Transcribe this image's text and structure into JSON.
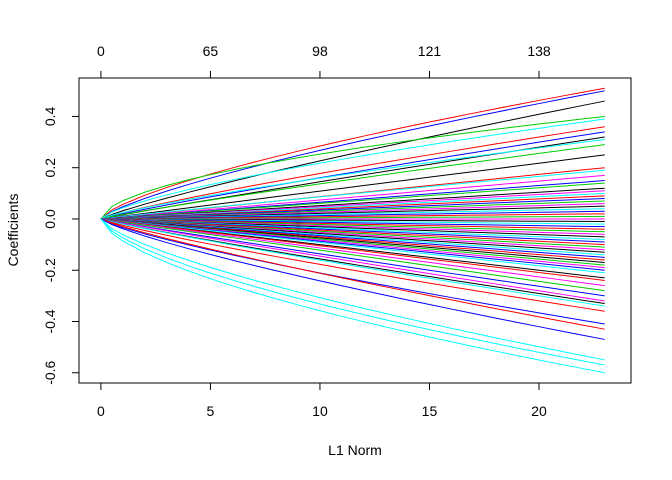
{
  "chart_data": {
    "type": "line",
    "title": "",
    "xlabel": "L1 Norm",
    "ylabel": "Coefficients",
    "xlim": [
      -1,
      24.2
    ],
    "ylim": [
      -0.64,
      0.55
    ],
    "x_ticks": [
      0,
      5,
      10,
      15,
      20
    ],
    "x_tick_labels": [
      "0",
      "5",
      "10",
      "15",
      "20"
    ],
    "y_ticks": [
      -0.6,
      -0.4,
      -0.2,
      0.0,
      0.2,
      0.4
    ],
    "y_tick_labels": [
      "-0.6",
      "-0.4",
      "-0.2",
      "0.0",
      "0.2",
      "0.4"
    ],
    "top_axis": {
      "positions": [
        0,
        5,
        10,
        15,
        20
      ],
      "labels": [
        "0",
        "65",
        "98",
        "121",
        "138"
      ]
    },
    "grid": false,
    "legend": "none",
    "x": [
      0,
      0.5,
      1,
      2,
      3,
      4,
      5,
      6,
      7,
      8,
      9,
      10,
      11,
      12,
      13,
      14,
      15,
      16,
      17,
      18,
      19,
      20,
      21,
      22,
      23
    ],
    "palette": [
      "#000000",
      "#FF0000",
      "#00CD00",
      "#0000FF",
      "#00FFFF",
      "#FF00FF",
      "#FFFF00",
      "#BEBEBE"
    ],
    "series": [
      {
        "color": "#FF0000",
        "end": 0.51,
        "curve": 0.7
      },
      {
        "color": "#0000FF",
        "end": 0.5,
        "curve": 0.75
      },
      {
        "color": "#000000",
        "end": 0.46,
        "curve": 0.85
      },
      {
        "color": "#00CD00",
        "end": 0.4,
        "curve": 0.55
      },
      {
        "color": "#00FFFF",
        "end": 0.39,
        "curve": 0.7
      },
      {
        "color": "#FF0000",
        "end": 0.36,
        "curve": 0.85
      },
      {
        "color": "#0000FF",
        "end": 0.34,
        "curve": 0.9
      },
      {
        "color": "#000000",
        "end": 0.32,
        "curve": 0.95
      },
      {
        "color": "#00FFFF",
        "end": 0.31,
        "curve": 0.8
      },
      {
        "color": "#00CD00",
        "end": 0.29,
        "curve": 0.9
      },
      {
        "color": "#000000",
        "end": 0.25,
        "curve": 1.0
      },
      {
        "color": "#FF0000",
        "end": 0.2,
        "curve": 1.0
      },
      {
        "color": "#00FFFF",
        "end": 0.19,
        "curve": 0.95
      },
      {
        "color": "#FF00FF",
        "end": 0.17,
        "curve": 1.0
      },
      {
        "color": "#0000FF",
        "end": 0.15,
        "curve": 1.0
      },
      {
        "color": "#00CD00",
        "end": 0.14,
        "curve": 1.0
      },
      {
        "color": "#000000",
        "end": 0.12,
        "curve": 1.0
      },
      {
        "color": "#FF00FF",
        "end": 0.11,
        "curve": 1.0
      },
      {
        "color": "#00FFFF",
        "end": 0.1,
        "curve": 1.0
      },
      {
        "color": "#FF0000",
        "end": 0.09,
        "curve": 1.0
      },
      {
        "color": "#0000FF",
        "end": 0.08,
        "curve": 1.0
      },
      {
        "color": "#00CD00",
        "end": 0.07,
        "curve": 1.0
      },
      {
        "color": "#FF00FF",
        "end": 0.06,
        "curve": 1.0
      },
      {
        "color": "#000000",
        "end": 0.05,
        "curve": 1.0
      },
      {
        "color": "#00FFFF",
        "end": 0.04,
        "curve": 1.0
      },
      {
        "color": "#0000FF",
        "end": 0.03,
        "curve": 1.0
      },
      {
        "color": "#FF0000",
        "end": 0.02,
        "curve": 1.0
      },
      {
        "color": "#00CD00",
        "end": 0.01,
        "curve": 1.0
      },
      {
        "color": "#FF00FF",
        "end": 0.0,
        "curve": 1.0
      },
      {
        "color": "#000000",
        "end": -0.01,
        "curve": 1.0
      },
      {
        "color": "#00FFFF",
        "end": -0.02,
        "curve": 1.0
      },
      {
        "color": "#0000FF",
        "end": -0.03,
        "curve": 1.0
      },
      {
        "color": "#FF0000",
        "end": -0.04,
        "curve": 1.0
      },
      {
        "color": "#00CD00",
        "end": -0.05,
        "curve": 1.0
      },
      {
        "color": "#FF00FF",
        "end": -0.06,
        "curve": 1.0
      },
      {
        "color": "#000000",
        "end": -0.07,
        "curve": 1.0
      },
      {
        "color": "#00FFFF",
        "end": -0.08,
        "curve": 1.0
      },
      {
        "color": "#0000FF",
        "end": -0.09,
        "curve": 1.0
      },
      {
        "color": "#FF0000",
        "end": -0.1,
        "curve": 1.0
      },
      {
        "color": "#00CD00",
        "end": -0.11,
        "curve": 1.0
      },
      {
        "color": "#FF00FF",
        "end": -0.12,
        "curve": 1.0
      },
      {
        "color": "#000000",
        "end": -0.13,
        "curve": 1.0
      },
      {
        "color": "#00FFFF",
        "end": -0.14,
        "curve": 1.0
      },
      {
        "color": "#0000FF",
        "end": -0.15,
        "curve": 1.0
      },
      {
        "color": "#FF0000",
        "end": -0.16,
        "curve": 1.0
      },
      {
        "color": "#000000",
        "end": -0.17,
        "curve": 1.0
      },
      {
        "color": "#00CD00",
        "end": -0.18,
        "curve": 1.0
      },
      {
        "color": "#FF00FF",
        "end": -0.19,
        "curve": 1.0
      },
      {
        "color": "#0000FF",
        "end": -0.2,
        "curve": 1.0
      },
      {
        "color": "#00FFFF",
        "end": -0.21,
        "curve": 1.0
      },
      {
        "color": "#000000",
        "end": -0.23,
        "curve": 1.0
      },
      {
        "color": "#FF0000",
        "end": -0.24,
        "curve": 1.0
      },
      {
        "color": "#FF00FF",
        "end": -0.26,
        "curve": 1.0
      },
      {
        "color": "#00CD00",
        "end": -0.28,
        "curve": 1.0
      },
      {
        "color": "#0000FF",
        "end": -0.3,
        "curve": 0.95
      },
      {
        "color": "#FF00FF",
        "end": -0.32,
        "curve": 0.95
      },
      {
        "color": "#000000",
        "end": -0.33,
        "curve": 0.9
      },
      {
        "color": "#00FFFF",
        "end": -0.34,
        "curve": 0.9
      },
      {
        "color": "#FF0000",
        "end": -0.36,
        "curve": 0.85
      },
      {
        "color": "#0000FF",
        "end": -0.41,
        "curve": 0.8
      },
      {
        "color": "#FF0000",
        "end": -0.43,
        "curve": 0.85
      },
      {
        "color": "#0000FF",
        "end": -0.47,
        "curve": 0.8
      },
      {
        "color": "#00FFFF",
        "end": -0.55,
        "curve": 0.7
      },
      {
        "color": "#00FFFF",
        "end": -0.57,
        "curve": 0.65
      },
      {
        "color": "#00FFFF",
        "end": -0.6,
        "curve": 0.62
      }
    ]
  }
}
